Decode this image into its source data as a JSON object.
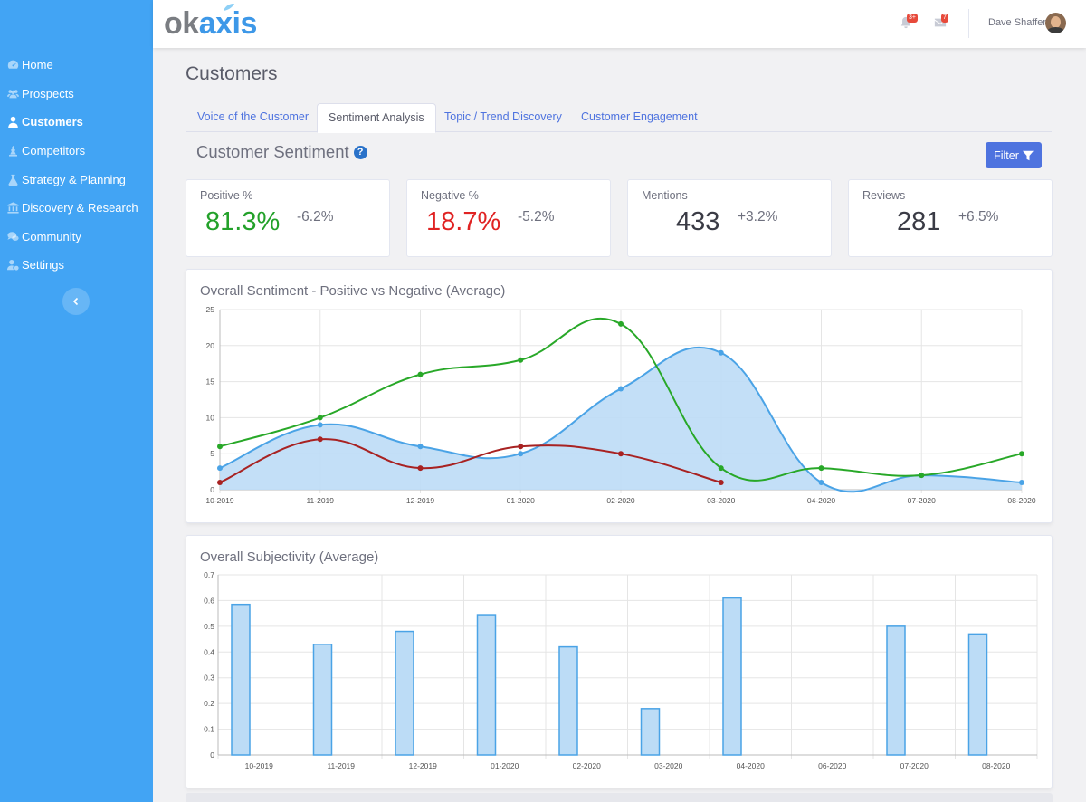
{
  "app": {
    "logo_ok": "ok",
    "logo_axis": "axis"
  },
  "sidebar": {
    "items": [
      {
        "label": "Home",
        "icon": "tachometer-icon"
      },
      {
        "label": "Prospects",
        "icon": "users-icon"
      },
      {
        "label": "Customers",
        "icon": "user-icon",
        "active": true
      },
      {
        "label": "Competitors",
        "icon": "chess-icon"
      },
      {
        "label": "Strategy & Planning",
        "icon": "flask-icon"
      },
      {
        "label": "Discovery & Research",
        "icon": "university-icon"
      },
      {
        "label": "Community",
        "icon": "comments-icon"
      },
      {
        "label": "Settings",
        "icon": "user-cog-icon"
      }
    ],
    "collapse_icon": "chevron-left-icon"
  },
  "topbar": {
    "alerts_badge": "3+",
    "messages_badge": "7",
    "user_name": "Dave Shaffer"
  },
  "page": {
    "title": "Customers",
    "tabs": [
      {
        "label": "Voice of the Customer"
      },
      {
        "label": "Sentiment Analysis",
        "active": true
      },
      {
        "label": "Topic / Trend Discovery"
      },
      {
        "label": "Customer Engagement"
      }
    ],
    "section_title": "Customer Sentiment",
    "help_icon": "?",
    "filter_label": "Filter"
  },
  "stats": [
    {
      "label": "Positive %",
      "value": "81.3%",
      "change": "-6.2%"
    },
    {
      "label": "Negative %",
      "value": "18.7%",
      "change": "-5.2%"
    },
    {
      "label": "Mentions",
      "value": "433",
      "change": "+3.2%"
    },
    {
      "label": "Reviews",
      "value": "281",
      "change": "+6.5%"
    }
  ],
  "colors": {
    "sidebar": "#42a4f4",
    "primary": "#4e73df",
    "positive": "#23a12a",
    "negative": "#e02323",
    "line_blue": "#4aa3e6",
    "fill_blue": "#bcdcf6",
    "line_green": "#28a828",
    "line_red": "#a82222"
  },
  "chart_data": [
    {
      "type": "line",
      "title": "Overall Sentiment - Positive vs Negative (Average)",
      "x": [
        "10-2019",
        "11-2019",
        "12-2019",
        "01-2020",
        "02-2020",
        "03-2020",
        "04-2020",
        "07-2020",
        "08-2020"
      ],
      "ylim": [
        0,
        25
      ],
      "yticks": [
        0,
        5,
        10,
        15,
        20,
        25
      ],
      "grid": true,
      "series": [
        {
          "color": "#4aa3e6",
          "fill": true,
          "values": [
            3,
            9,
            6,
            5,
            14,
            19,
            1,
            2,
            1
          ]
        },
        {
          "color": "#28a828",
          "fill": false,
          "values": [
            6,
            10,
            16,
            18,
            23,
            3,
            3,
            2,
            5
          ]
        },
        {
          "color": "#a82222",
          "fill": false,
          "values": [
            1,
            7,
            3,
            6,
            5,
            1,
            null,
            null,
            null
          ]
        }
      ]
    },
    {
      "type": "bar",
      "title": "Overall Subjectivity (Average)",
      "categories": [
        "10-2019",
        "11-2019",
        "12-2019",
        "01-2020",
        "02-2020",
        "03-2020",
        "04-2020",
        "06-2020",
        "07-2020",
        "08-2020"
      ],
      "values": [
        0.585,
        0.43,
        0.48,
        0.545,
        0.42,
        0.18,
        0.61,
        null,
        0.5,
        0.47
      ],
      "ylim": [
        0,
        0.7
      ],
      "yticks": [
        "0",
        "0.1",
        "0.2",
        "0.3",
        "0.4",
        "0.5",
        "0.6",
        "0.7"
      ],
      "grid": true
    }
  ]
}
